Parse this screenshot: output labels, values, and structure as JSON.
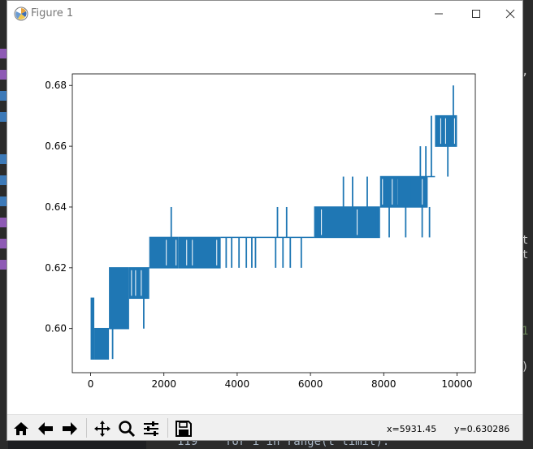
{
  "window": {
    "title": "Figure 1",
    "controls": [
      "minimize",
      "maximize",
      "close"
    ]
  },
  "toolbar": {
    "buttons": [
      {
        "name": "home-icon",
        "action": "Home"
      },
      {
        "name": "back-arrow-icon",
        "action": "Back"
      },
      {
        "name": "forward-arrow-icon",
        "action": "Forward"
      },
      {
        "name": "pan-icon",
        "action": "Pan"
      },
      {
        "name": "zoom-icon",
        "action": "Zoom"
      },
      {
        "name": "subplots-config-icon",
        "action": "Configure subplots"
      },
      {
        "name": "save-icon",
        "action": "Save"
      }
    ],
    "x_readout": "x=5931.45",
    "y_readout": "y=0.630286"
  },
  "background_editor": {
    "bottom_line": "119    for i in range(t limit):"
  },
  "colors": {
    "series": "#1f77b4",
    "editor_bg": "#2b2b2b"
  },
  "chart_data": {
    "type": "line",
    "title": "",
    "xlabel": "",
    "ylabel": "",
    "xlim": [
      -500,
      10500
    ],
    "ylim": [
      0.5855,
      0.6838
    ],
    "xticks": [
      0,
      2000,
      4000,
      6000,
      8000,
      10000
    ],
    "yticks": [
      0.6,
      0.62,
      0.64,
      0.66,
      0.68
    ],
    "xtick_labels": [
      "0",
      "2000",
      "4000",
      "6000",
      "8000",
      "10000"
    ],
    "ytick_labels": [
      "0.60",
      "0.62",
      "0.64",
      "0.66",
      "0.68"
    ],
    "grid": false,
    "legend": "none",
    "series": [
      {
        "bands": [
          {
            "x0": 0,
            "x1": 100,
            "lo": 0.59,
            "hi": 0.61
          },
          {
            "x0": 100,
            "x1": 500,
            "lo": 0.59,
            "hi": 0.6
          },
          {
            "x0": 500,
            "x1": 1050,
            "lo": 0.6,
            "hi": 0.62
          },
          {
            "x0": 1050,
            "x1": 1600,
            "lo": 0.61,
            "hi": 0.62
          },
          {
            "x0": 1600,
            "x1": 2400,
            "lo": 0.62,
            "hi": 0.63
          },
          {
            "x0": 2400,
            "x1": 3550,
            "lo": 0.62,
            "hi": 0.63
          },
          {
            "x0": 6100,
            "x1": 7900,
            "lo": 0.63,
            "hi": 0.64
          },
          {
            "x0": 7900,
            "x1": 9200,
            "lo": 0.64,
            "hi": 0.65
          },
          {
            "x0": 9400,
            "x1": 10000,
            "lo": 0.66,
            "hi": 0.67
          }
        ],
        "level_runs": [
          {
            "x0": 3550,
            "x1": 6100,
            "y": 0.63
          },
          {
            "x0": 9200,
            "x1": 9400,
            "y": 0.65
          }
        ],
        "spikes": [
          {
            "x": 50,
            "y0": 0.59,
            "y1": 0.61
          },
          {
            "x": 600,
            "y0": 0.59,
            "y1": 0.6
          },
          {
            "x": 1450,
            "y0": 0.6,
            "y1": 0.62
          },
          {
            "x": 1550,
            "y0": 0.61,
            "y1": 0.62
          },
          {
            "x": 2200,
            "y0": 0.63,
            "y1": 0.64
          },
          {
            "x": 3700,
            "y0": 0.62,
            "y1": 0.63
          },
          {
            "x": 3850,
            "y0": 0.62,
            "y1": 0.63
          },
          {
            "x": 4050,
            "y0": 0.62,
            "y1": 0.63
          },
          {
            "x": 4250,
            "y0": 0.62,
            "y1": 0.63
          },
          {
            "x": 4400,
            "y0": 0.62,
            "y1": 0.63
          },
          {
            "x": 4500,
            "y0": 0.62,
            "y1": 0.63
          },
          {
            "x": 5050,
            "y0": 0.62,
            "y1": 0.63
          },
          {
            "x": 5100,
            "y0": 0.63,
            "y1": 0.64
          },
          {
            "x": 5250,
            "y0": 0.62,
            "y1": 0.63
          },
          {
            "x": 5350,
            "y0": 0.63,
            "y1": 0.64
          },
          {
            "x": 5450,
            "y0": 0.62,
            "y1": 0.63
          },
          {
            "x": 5750,
            "y0": 0.62,
            "y1": 0.63
          },
          {
            "x": 6900,
            "y0": 0.64,
            "y1": 0.65
          },
          {
            "x": 7150,
            "y0": 0.64,
            "y1": 0.65
          },
          {
            "x": 7550,
            "y0": 0.64,
            "y1": 0.65
          },
          {
            "x": 7800,
            "y0": 0.63,
            "y1": 0.64
          },
          {
            "x": 8050,
            "y0": 0.64,
            "y1": 0.65
          },
          {
            "x": 8150,
            "y0": 0.63,
            "y1": 0.64
          },
          {
            "x": 8400,
            "y0": 0.64,
            "y1": 0.65
          },
          {
            "x": 8600,
            "y0": 0.63,
            "y1": 0.64
          },
          {
            "x": 8750,
            "y0": 0.64,
            "y1": 0.65
          },
          {
            "x": 9000,
            "y0": 0.65,
            "y1": 0.66
          },
          {
            "x": 9050,
            "y0": 0.63,
            "y1": 0.64
          },
          {
            "x": 9150,
            "y0": 0.65,
            "y1": 0.66
          },
          {
            "x": 9250,
            "y0": 0.63,
            "y1": 0.64
          },
          {
            "x": 9300,
            "y0": 0.65,
            "y1": 0.67
          },
          {
            "x": 9750,
            "y0": 0.65,
            "y1": 0.66
          },
          {
            "x": 9800,
            "y0": 0.66,
            "y1": 0.67
          },
          {
            "x": 9900,
            "y0": 0.67,
            "y1": 0.68
          }
        ]
      }
    ]
  }
}
